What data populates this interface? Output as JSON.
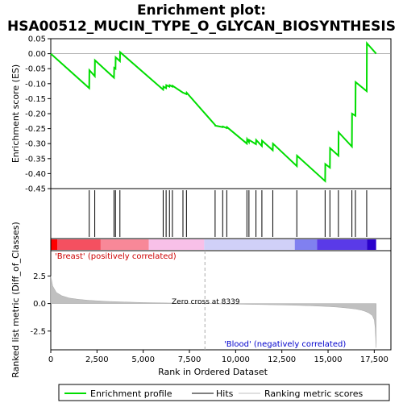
{
  "chart_data": {
    "type": "line",
    "title_line1": "Enrichment plot:",
    "title_line2": "HSA00512_MUCIN_TYPE_O_GLYCAN_BIOSYNTHESIS",
    "es_panel": {
      "ylabel": "Enrichment score (ES)",
      "ylim": [
        -0.45,
        0.05
      ],
      "yticks": [
        "0.05",
        "0.00",
        "-0.05",
        "-0.10",
        "-0.15",
        "-0.20",
        "-0.25",
        "-0.30",
        "-0.35",
        "-0.40",
        "-0.45"
      ],
      "ytick_values": [
        0.05,
        0.0,
        -0.05,
        -0.1,
        -0.15,
        -0.2,
        -0.25,
        -0.3,
        -0.35,
        -0.4,
        -0.45
      ],
      "series_name": "Enrichment profile",
      "color": "#00dd00",
      "x": [
        0,
        2080,
        2090,
        2380,
        2390,
        3420,
        3430,
        3500,
        3510,
        3740,
        3750,
        6080,
        6090,
        6240,
        6250,
        6420,
        6430,
        6580,
        6590,
        7150,
        7160,
        7340,
        7350,
        8890,
        8900,
        9300,
        9310,
        9520,
        9530,
        10610,
        10620,
        10720,
        10730,
        11100,
        11110,
        11420,
        11430,
        12010,
        12020,
        13310,
        13320,
        14840,
        14850,
        15100,
        15110,
        15560,
        15570,
        16290,
        16300,
        16480,
        16490,
        17090,
        17100,
        17600
      ],
      "y": [
        0.0,
        -0.115,
        -0.055,
        -0.075,
        -0.022,
        -0.08,
        -0.047,
        -0.05,
        -0.012,
        -0.025,
        0.005,
        -0.12,
        -0.11,
        -0.115,
        -0.105,
        -0.11,
        -0.105,
        -0.11,
        -0.107,
        -0.13,
        -0.13,
        -0.135,
        -0.13,
        -0.238,
        -0.24,
        -0.245,
        -0.243,
        -0.248,
        -0.245,
        -0.3,
        -0.285,
        -0.295,
        -0.288,
        -0.302,
        -0.288,
        -0.308,
        -0.29,
        -0.322,
        -0.3,
        -0.375,
        -0.34,
        -0.425,
        -0.368,
        -0.38,
        -0.315,
        -0.34,
        -0.262,
        -0.31,
        -0.2,
        -0.207,
        -0.095,
        -0.125,
        0.035,
        0.0
      ]
    },
    "hits": [
      2080,
      2380,
      3420,
      3500,
      3740,
      6080,
      6240,
      6420,
      6580,
      7150,
      7340,
      8890,
      9300,
      9520,
      10610,
      10720,
      11100,
      11420,
      12010,
      13310,
      14840,
      15100,
      15560,
      16290,
      16480,
      17090
    ],
    "metric_panel": {
      "ylabel": "Ranked list metric (Diff_of_Classes)",
      "ylim": [
        -4.2,
        4.8
      ],
      "yticks": [
        "2.5",
        "0.0",
        "-2.5"
      ],
      "ytick_values": [
        2.5,
        0.0,
        -2.5
      ],
      "x": [
        0,
        100,
        300,
        600,
        1000,
        1500,
        2000,
        3000,
        4000,
        5000,
        6000,
        7000,
        8000,
        8339,
        9000,
        10000,
        11000,
        12000,
        13000,
        14000,
        15000,
        15500,
        16000,
        16500,
        16800,
        17000,
        17200,
        17400,
        17500,
        17550,
        17600
      ],
      "y": [
        2.5,
        1.6,
        1.0,
        0.7,
        0.5,
        0.38,
        0.3,
        0.2,
        0.14,
        0.09,
        0.06,
        0.03,
        0.01,
        0.0,
        -0.02,
        -0.05,
        -0.08,
        -0.11,
        -0.15,
        -0.2,
        -0.27,
        -0.32,
        -0.4,
        -0.5,
        -0.6,
        -0.7,
        -0.85,
        -1.1,
        -1.5,
        -2.2,
        -4.0
      ]
    },
    "xlabel": "Rank in Ordered Dataset",
    "xlim": [
      0,
      18400
    ],
    "xticks": [
      "0",
      "2,500",
      "5,000",
      "7,500",
      "10,000",
      "12,500",
      "15,000",
      "17,500"
    ],
    "xtick_values": [
      0,
      2500,
      5000,
      7500,
      10000,
      12500,
      15000,
      17500
    ],
    "list_length": 17600,
    "zero_cross": 8339,
    "zero_cross_label": "Zero cross at 8339",
    "pos_label": "'Breast' (positively correlated)",
    "neg_label": "'Blood' (negatively correlated)",
    "colorbar_segments": [
      {
        "from": 0,
        "to": 350,
        "color": "#ff0000"
      },
      {
        "from": 350,
        "to": 2700,
        "color": "#f45060"
      },
      {
        "from": 2700,
        "to": 5300,
        "color": "#f88898"
      },
      {
        "from": 5300,
        "to": 8300,
        "color": "#f8c0e8"
      },
      {
        "from": 8300,
        "to": 13200,
        "color": "#d0d0f8"
      },
      {
        "from": 13200,
        "to": 14400,
        "color": "#8080f0"
      },
      {
        "from": 14400,
        "to": 17100,
        "color": "#5a3ae8"
      },
      {
        "from": 17100,
        "to": 17600,
        "color": "#2a00cc"
      }
    ],
    "legend": [
      {
        "label": "Enrichment profile",
        "color": "#00dd00"
      },
      {
        "label": "Hits",
        "color": "#000000"
      },
      {
        "label": "Ranking metric scores",
        "color": "#c0c0c0"
      }
    ]
  }
}
